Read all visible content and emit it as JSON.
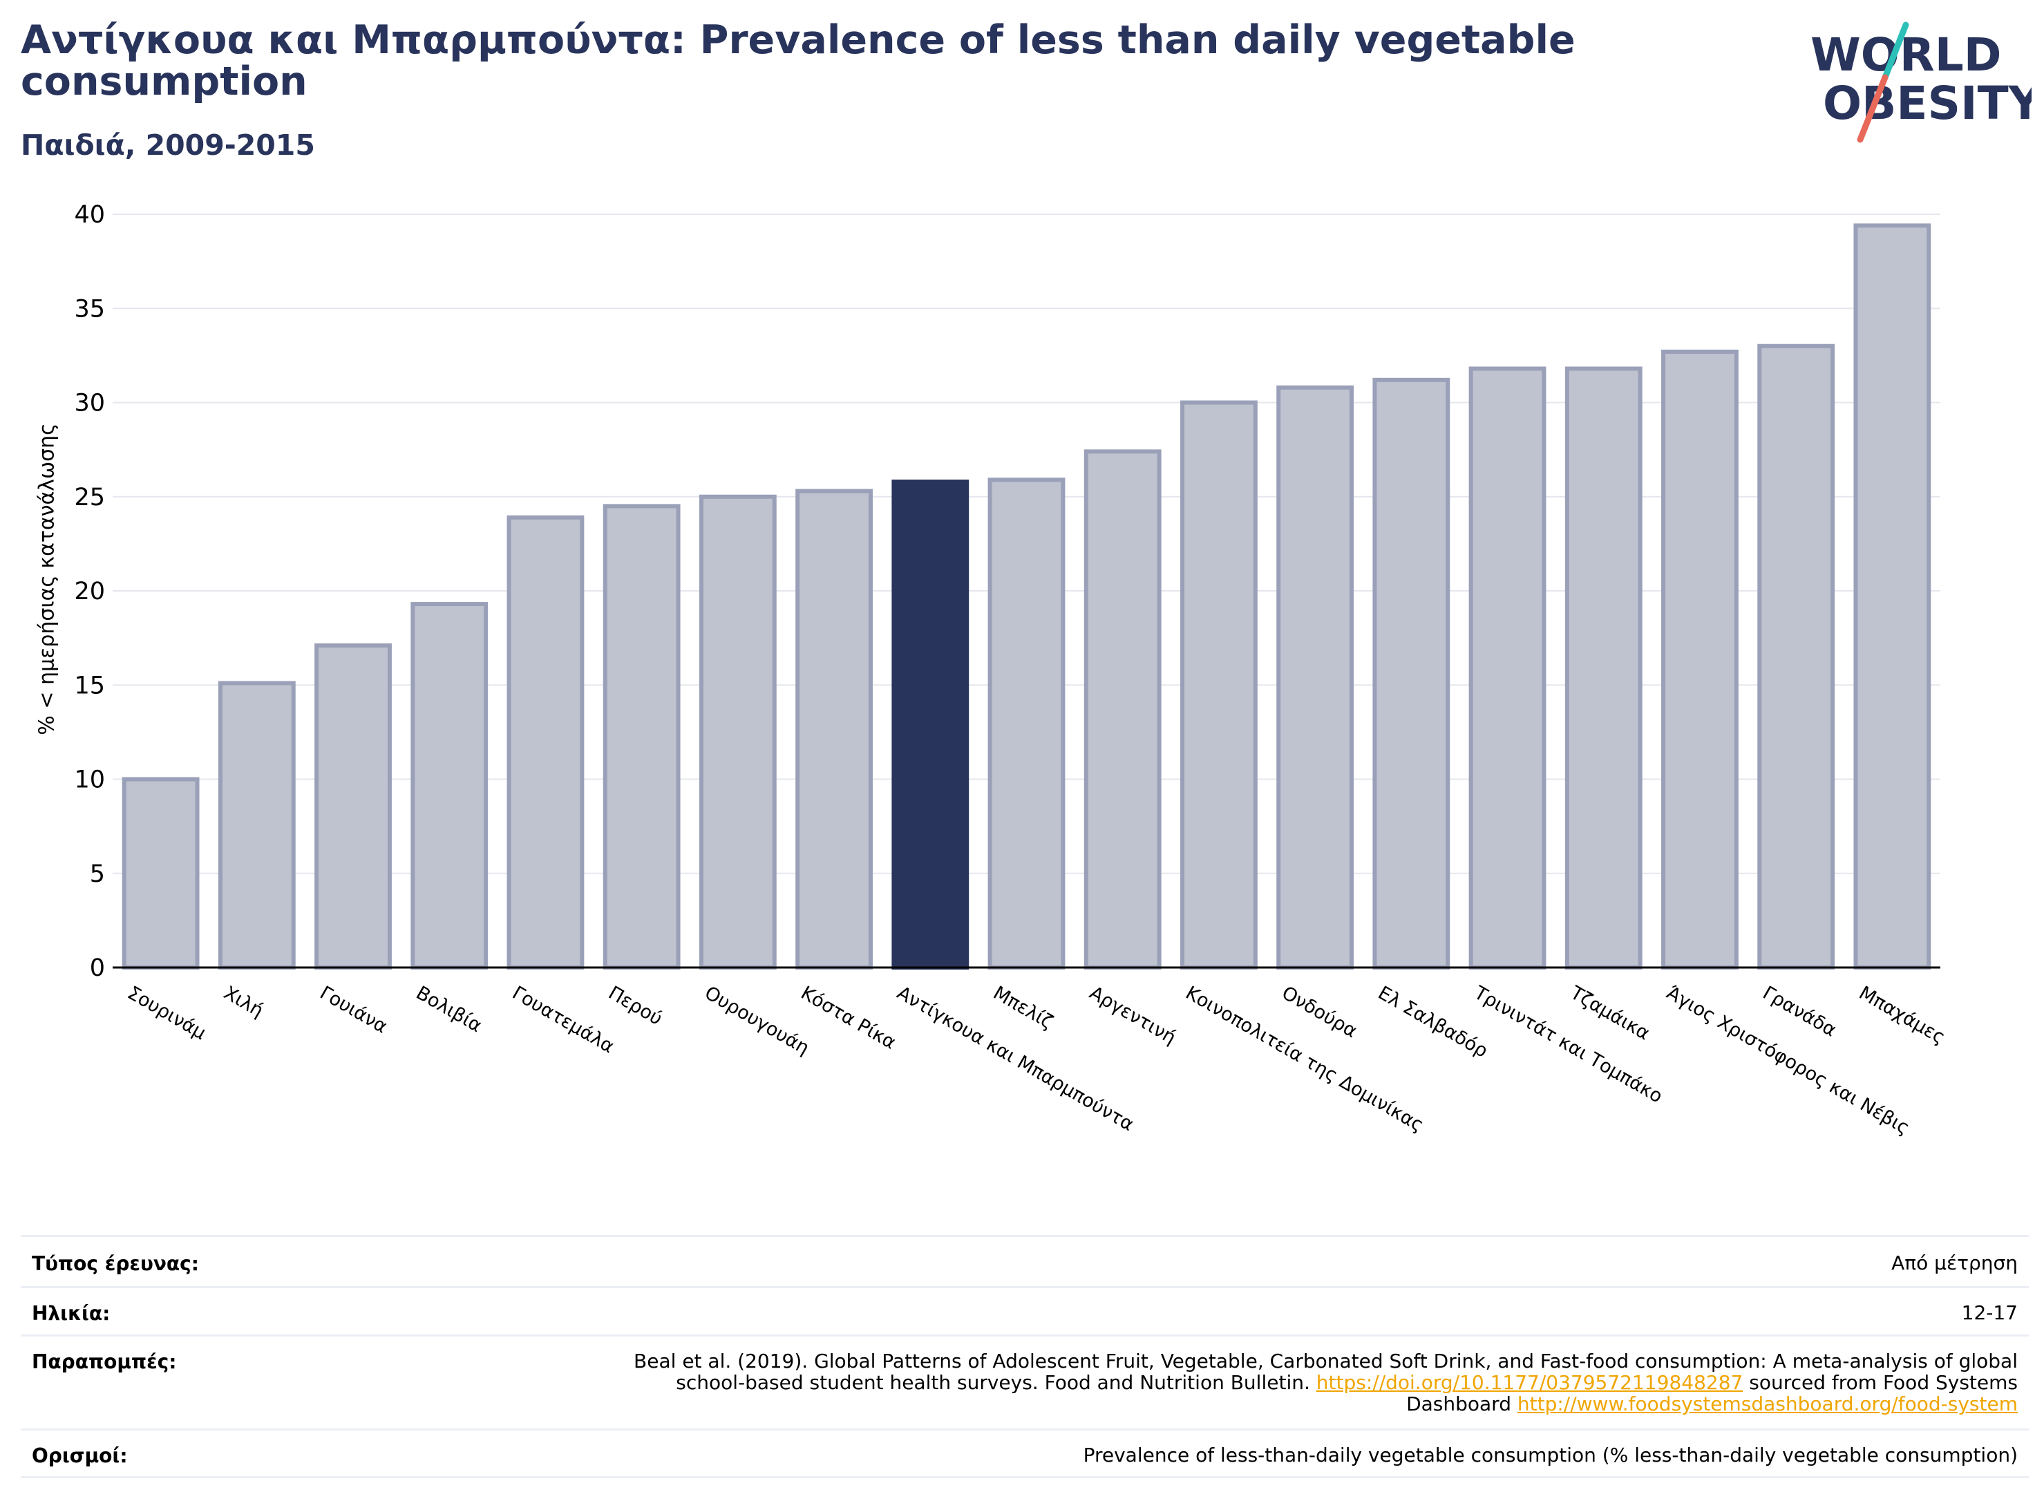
{
  "header": {
    "title": "Αντίγκουα και Μπαρμπούντα: Prevalence of less than daily vegetable consumption",
    "subtitle": "Παιδιά, 2009-2015"
  },
  "logo": {
    "line1": "WORLD",
    "line2": "OBESITY"
  },
  "colors": {
    "highlight": "#29345c",
    "bar": "#bfc2cf",
    "bar_edge": "#9aa0b8",
    "title": "#29345c",
    "link": "#f0a500",
    "grid": "#e6e7ee"
  },
  "chart_data": {
    "type": "bar",
    "ylabel": "% < ημερήσιας κατανάλωσης",
    "ylim": [
      0,
      40
    ],
    "yticks": [
      0,
      5,
      10,
      15,
      20,
      25,
      30,
      35,
      40
    ],
    "grid": true,
    "highlight": "Αντίγκουα και Μπαρμπούντα",
    "categories": [
      "Σουρινάμ",
      "Χιλή",
      "Γουιάνα",
      "Βολιβία",
      "Γουατεμάλα",
      "Περού",
      "Ουρουγουάη",
      "Κόστα Ρίκα",
      "Αντίγκουα και Μπαρμπούντα",
      "Μπελίζ",
      "Αργεντινή",
      "Κοινοπολιτεία της Δομινίκας",
      "Ονδούρα",
      "Ελ Σαλβαδόρ",
      "Τρινιντάτ και Τομπάκο",
      "Τζαμάικα",
      "Άγιος Χριστόφορος και Νέβις",
      "Γρανάδα",
      "Μπαχάμες"
    ],
    "values": [
      10.0,
      15.1,
      17.1,
      19.3,
      23.9,
      24.5,
      25.0,
      25.3,
      25.8,
      25.9,
      27.4,
      30.0,
      30.8,
      31.2,
      31.8,
      31.8,
      32.7,
      33.0,
      39.4
    ]
  },
  "info": {
    "survey_label": "Τύπος έρευνας:",
    "survey_value": "Από μέτρηση",
    "age_label": "Ηλικία:",
    "age_value": "12-17",
    "refs_label": "Παραπομπές:",
    "refs_text1": "Beal et al. (2019). Global Patterns of Adolescent Fruit, Vegetable, Carbonated Soft Drink, and Fast-food consumption: A meta-analysis of global school-based student health surveys. Food and Nutrition Bulletin. ",
    "refs_link1": "https://doi.org/10.1177/0379572119848287",
    "refs_text2": " sourced from Food Systems Dashboard ",
    "refs_link2": "http://www.foodsystemsdashboard.org/food-system",
    "defs_label": "Ορισμοί:",
    "defs_value": "Prevalence of less-than-daily vegetable consumption (% less-than-daily vegetable consumption)"
  }
}
